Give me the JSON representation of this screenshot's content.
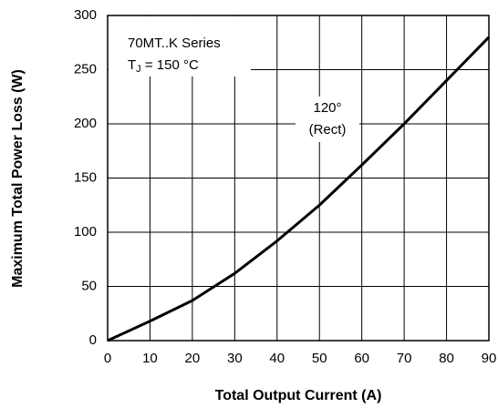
{
  "chart_data": {
    "type": "line",
    "xlabel": "Total Output Current (A)",
    "ylabel": "Maximum Total Power Loss (W)",
    "annotation": {
      "line1": "70MT..K Series",
      "t": "T",
      "sub": "J",
      "rest": " = 150 °C"
    },
    "curve_label": [
      "120°",
      "(Rect)"
    ],
    "x": [
      0,
      10,
      20,
      30,
      40,
      50,
      60,
      70,
      80,
      90
    ],
    "series": [
      {
        "color": "#000000",
        "values": [
          0,
          18,
          37,
          62,
          92,
          125,
          162,
          200,
          240,
          280
        ]
      }
    ],
    "xlim": [
      0,
      90
    ],
    "xticks": [
      0,
      10,
      20,
      30,
      40,
      50,
      60,
      70,
      80,
      90
    ],
    "ylim": [
      0,
      300
    ],
    "yticks": [
      0,
      50,
      100,
      150,
      200,
      250,
      300
    ],
    "grid": true
  }
}
